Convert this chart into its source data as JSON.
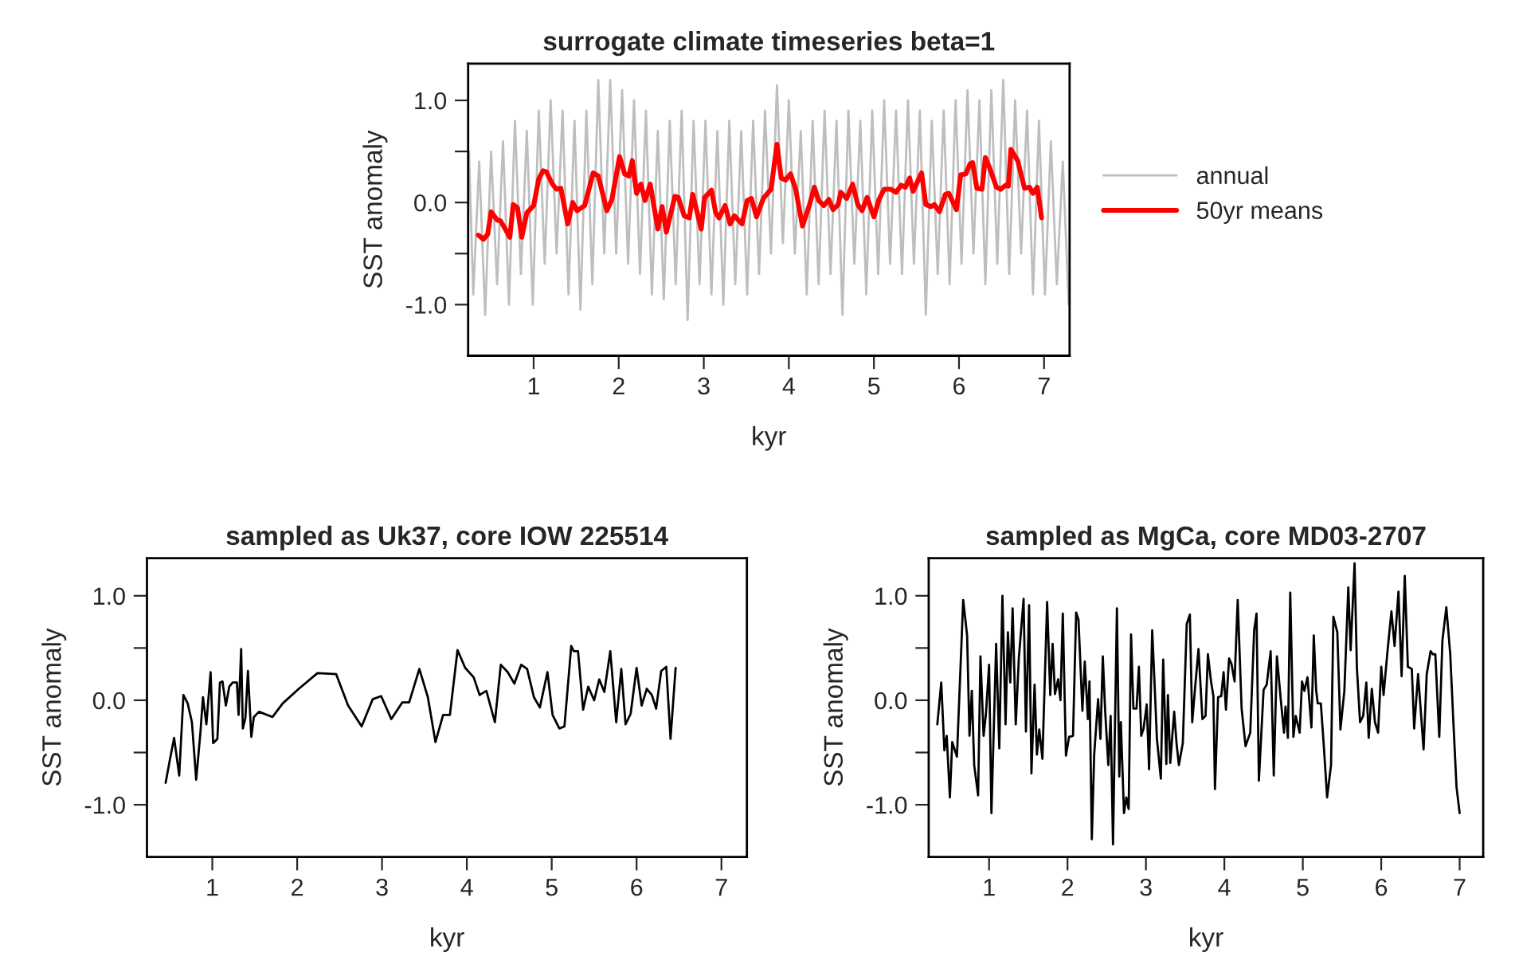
{
  "chart_data": [
    {
      "type": "line",
      "title": "surrogate climate timeseries beta=1",
      "xlabel": "kyr",
      "ylabel": "SST anomaly",
      "xlim": [
        0.23,
        7.3
      ],
      "ylim": [
        -1.5,
        1.36
      ],
      "xticks": [
        1,
        2,
        3,
        4,
        5,
        6,
        7
      ],
      "yticks": [
        {
          "value": -1,
          "label": "-1.0"
        },
        {
          "value": -0.5,
          "label": null
        },
        {
          "value": 0,
          "label": "0.0"
        },
        {
          "value": 0.5,
          "label": null
        },
        {
          "value": 1,
          "label": "1.0"
        }
      ],
      "grid": false,
      "legend": "right",
      "series": [
        {
          "name": "annual",
          "color": "#bebebe",
          "x": [
            0.24,
            0.29,
            0.36,
            0.43,
            0.5,
            0.57,
            0.64,
            0.71,
            0.78,
            0.85,
            0.92,
            0.99,
            1.06,
            1.13,
            1.2,
            1.27,
            1.34,
            1.41,
            1.48,
            1.55,
            1.62,
            1.69,
            1.76,
            1.83,
            1.9,
            1.97,
            2.04,
            2.11,
            2.18,
            2.25,
            2.32,
            2.39,
            2.46,
            2.53,
            2.6,
            2.67,
            2.74,
            2.81,
            2.88,
            2.95,
            3.02,
            3.09,
            3.16,
            3.23,
            3.3,
            3.37,
            3.44,
            3.51,
            3.58,
            3.65,
            3.72,
            3.79,
            3.86,
            3.93,
            4.0,
            4.07,
            4.14,
            4.21,
            4.28,
            4.35,
            4.42,
            4.49,
            4.56,
            4.63,
            4.7,
            4.77,
            4.84,
            4.91,
            4.98,
            5.05,
            5.12,
            5.19,
            5.26,
            5.33,
            5.4,
            5.47,
            5.54,
            5.61,
            5.68,
            5.75,
            5.82,
            5.89,
            5.96,
            6.03,
            6.1,
            6.17,
            6.24,
            6.31,
            6.38,
            6.45,
            6.52,
            6.59,
            6.66,
            6.73,
            6.8,
            6.87,
            6.94,
            7.01,
            7.08,
            7.15,
            7.22,
            7.29
          ],
          "values": [
            0.5,
            -0.9,
            0.4,
            -1.1,
            0.5,
            -0.8,
            0.6,
            -1.0,
            0.8,
            -0.7,
            0.7,
            -1.0,
            0.9,
            -0.6,
            1.0,
            -0.5,
            0.9,
            -0.9,
            0.8,
            -1.05,
            0.9,
            -0.8,
            1.2,
            -0.5,
            1.2,
            -0.5,
            1.1,
            -0.6,
            1.0,
            -0.7,
            0.9,
            -0.9,
            0.7,
            -0.95,
            0.8,
            -0.8,
            0.9,
            -1.15,
            0.8,
            -0.8,
            0.8,
            -0.9,
            0.7,
            -1.0,
            0.8,
            -0.8,
            0.7,
            -0.9,
            0.8,
            -0.7,
            0.9,
            -0.5,
            1.15,
            -0.4,
            1.0,
            -0.5,
            0.7,
            -0.9,
            0.8,
            -0.8,
            0.9,
            -0.7,
            0.8,
            -1.1,
            0.9,
            -0.6,
            0.8,
            -0.9,
            0.9,
            -0.7,
            1.0,
            -0.6,
            0.9,
            -0.7,
            1.0,
            -0.6,
            0.9,
            -1.1,
            0.8,
            -0.7,
            0.9,
            -0.8,
            1.0,
            -0.6,
            1.1,
            -0.5,
            1.0,
            -0.8,
            1.1,
            -0.6,
            1.2,
            -0.7,
            1.0,
            -0.5,
            0.9,
            -0.9,
            0.8,
            -0.9,
            0.6,
            -0.8,
            0.4,
            -1.0
          ]
        },
        {
          "name": "50yr means",
          "color": "#ff0000",
          "x": [
            0.35,
            0.41,
            0.46,
            0.5,
            0.57,
            0.61,
            0.66,
            0.72,
            0.76,
            0.81,
            0.86,
            0.92,
            1.0,
            1.06,
            1.11,
            1.15,
            1.22,
            1.27,
            1.32,
            1.4,
            1.46,
            1.51,
            1.6,
            1.7,
            1.76,
            1.86,
            1.92,
            2.01,
            2.07,
            2.12,
            2.16,
            2.21,
            2.26,
            2.31,
            2.37,
            2.46,
            2.51,
            2.56,
            2.66,
            2.7,
            2.77,
            2.83,
            2.87,
            2.97,
            3.01,
            3.09,
            3.14,
            3.18,
            3.25,
            3.31,
            3.36,
            3.45,
            3.51,
            3.56,
            3.62,
            3.7,
            3.79,
            3.86,
            3.91,
            3.96,
            4.02,
            4.08,
            4.16,
            4.24,
            4.3,
            4.35,
            4.41,
            4.47,
            4.52,
            4.58,
            4.61,
            4.68,
            4.75,
            4.81,
            4.86,
            4.92,
            5.0,
            5.06,
            5.12,
            5.2,
            5.26,
            5.32,
            5.37,
            5.42,
            5.46,
            5.56,
            5.61,
            5.67,
            5.71,
            5.77,
            5.84,
            5.88,
            5.97,
            6.02,
            6.08,
            6.13,
            6.16,
            6.21,
            6.27,
            6.31,
            6.36,
            6.44,
            6.49,
            6.55,
            6.58,
            6.61,
            6.69,
            6.77,
            6.83,
            6.87,
            6.92,
            6.97
          ],
          "values": [
            -0.32,
            -0.36,
            -0.31,
            -0.09,
            -0.17,
            -0.18,
            -0.25,
            -0.34,
            -0.02,
            -0.05,
            -0.34,
            -0.1,
            -0.03,
            0.23,
            0.31,
            0.3,
            0.18,
            0.13,
            0.14,
            -0.21,
            0.0,
            -0.08,
            -0.03,
            0.29,
            0.26,
            -0.08,
            0.03,
            0.45,
            0.28,
            0.26,
            0.41,
            0.09,
            0.18,
            0.02,
            0.18,
            -0.26,
            -0.04,
            -0.29,
            0.06,
            0.05,
            -0.13,
            -0.15,
            0.08,
            -0.26,
            0.05,
            0.12,
            -0.1,
            -0.15,
            -0.03,
            -0.21,
            -0.13,
            -0.21,
            0.02,
            0.04,
            -0.14,
            0.04,
            0.13,
            0.57,
            0.24,
            0.22,
            0.28,
            0.13,
            -0.23,
            -0.03,
            0.15,
            0.02,
            -0.03,
            0.03,
            -0.07,
            -0.02,
            0.1,
            0.04,
            0.18,
            -0.02,
            -0.08,
            0.05,
            -0.14,
            0.03,
            0.13,
            0.13,
            0.1,
            0.17,
            0.15,
            0.24,
            0.11,
            0.29,
            -0.02,
            -0.04,
            -0.02,
            -0.09,
            0.08,
            0.09,
            -0.07,
            0.27,
            0.28,
            0.38,
            0.39,
            0.14,
            0.13,
            0.44,
            0.34,
            0.15,
            0.13,
            0.17,
            0.16,
            0.52,
            0.41,
            0.14,
            0.15,
            0.09,
            0.15,
            -0.15
          ]
        }
      ]
    },
    {
      "type": "line",
      "title": "sampled as Uk37, core IOW 225514",
      "xlabel": "kyr",
      "ylabel": "SST anomaly",
      "xlim": [
        0.23,
        7.3
      ],
      "ylim": [
        -1.5,
        1.36
      ],
      "xticks": [
        1,
        2,
        3,
        4,
        5,
        6,
        7
      ],
      "yticks": [
        {
          "value": -1,
          "label": "-1.0"
        },
        {
          "value": -0.5,
          "label": null
        },
        {
          "value": 0,
          "label": "0.0"
        },
        {
          "value": 0.5,
          "label": null
        },
        {
          "value": 1,
          "label": "1.0"
        }
      ],
      "grid": false,
      "series": [
        {
          "color": "#000000",
          "x": [
            0.45,
            0.5,
            0.55,
            0.61,
            0.66,
            0.71,
            0.76,
            0.81,
            0.86,
            0.89,
            0.93,
            0.98,
            1.01,
            1.06,
            1.09,
            1.12,
            1.16,
            1.2,
            1.24,
            1.29,
            1.31,
            1.34,
            1.36,
            1.39,
            1.42,
            1.46,
            1.49,
            1.55,
            1.71,
            1.83,
            2.02,
            2.24,
            2.46,
            2.6,
            2.76,
            2.89,
            2.99,
            3.11,
            3.24,
            3.32,
            3.44,
            3.54,
            3.63,
            3.72,
            3.8,
            3.89,
            3.98,
            4.08,
            4.15,
            4.23,
            4.33,
            4.4,
            4.48,
            4.56,
            4.64,
            4.71,
            4.79,
            4.86,
            4.95,
            5.01,
            5.09,
            5.15,
            5.23,
            5.26,
            5.31,
            5.37,
            5.43,
            5.5,
            5.56,
            5.62,
            5.69,
            5.76,
            5.82,
            5.87,
            5.93,
            6.0,
            6.06,
            6.12,
            6.18,
            6.23,
            6.29,
            6.35,
            6.4,
            6.46
          ],
          "values": [
            -0.79,
            -0.57,
            -0.36,
            -0.72,
            0.05,
            -0.03,
            -0.21,
            -0.76,
            -0.31,
            0.03,
            -0.23,
            0.27,
            -0.41,
            -0.37,
            0.17,
            0.18,
            -0.05,
            0.13,
            0.17,
            0.17,
            -0.14,
            0.49,
            -0.27,
            -0.17,
            0.28,
            -0.35,
            -0.16,
            -0.11,
            -0.16,
            -0.03,
            0.11,
            0.26,
            0.25,
            -0.05,
            -0.25,
            0.01,
            0.04,
            -0.18,
            -0.02,
            -0.02,
            0.3,
            0.03,
            -0.4,
            -0.14,
            -0.14,
            0.48,
            0.31,
            0.22,
            0.05,
            0.09,
            -0.21,
            0.34,
            0.27,
            0.16,
            0.34,
            0.3,
            0.03,
            -0.07,
            0.27,
            -0.14,
            -0.27,
            -0.25,
            0.52,
            0.47,
            0.47,
            -0.09,
            0.13,
            0.0,
            0.2,
            0.08,
            0.47,
            -0.21,
            0.3,
            -0.23,
            -0.13,
            0.31,
            -0.05,
            0.11,
            0.05,
            -0.08,
            0.28,
            0.32,
            -0.37,
            0.31
          ]
        }
      ]
    },
    {
      "type": "line",
      "title": "sampled as MgCa, core MD03-2707",
      "xlabel": "kyr",
      "ylabel": "SST anomaly",
      "xlim": [
        0.23,
        7.3
      ],
      "ylim": [
        -1.5,
        1.36
      ],
      "xticks": [
        1,
        2,
        3,
        4,
        5,
        6,
        7
      ],
      "yticks": [
        {
          "value": -1,
          "label": "-1.0"
        },
        {
          "value": -0.5,
          "label": null
        },
        {
          "value": 0,
          "label": "0.0"
        },
        {
          "value": 0.5,
          "label": null
        },
        {
          "value": 1,
          "label": "1.0"
        }
      ],
      "grid": false,
      "series": [
        {
          "color": "#000000",
          "x": [
            0.34,
            0.39,
            0.43,
            0.46,
            0.5,
            0.53,
            0.59,
            0.67,
            0.72,
            0.75,
            0.78,
            0.81,
            0.86,
            0.89,
            0.93,
            0.96,
            1.0,
            1.03,
            1.09,
            1.13,
            1.17,
            1.21,
            1.24,
            1.27,
            1.3,
            1.34,
            1.38,
            1.44,
            1.47,
            1.51,
            1.54,
            1.58,
            1.61,
            1.64,
            1.68,
            1.74,
            1.78,
            1.81,
            1.84,
            1.88,
            1.91,
            1.94,
            1.98,
            2.02,
            2.07,
            2.11,
            2.14,
            2.19,
            2.22,
            2.26,
            2.28,
            2.31,
            2.34,
            2.39,
            2.42,
            2.45,
            2.48,
            2.52,
            2.55,
            2.58,
            2.63,
            2.66,
            2.68,
            2.72,
            2.75,
            2.78,
            2.81,
            2.84,
            2.88,
            2.91,
            2.94,
            2.97,
            3.01,
            3.04,
            3.08,
            3.11,
            3.14,
            3.19,
            3.22,
            3.26,
            3.28,
            3.31,
            3.36,
            3.39,
            3.42,
            3.47,
            3.52,
            3.56,
            3.59,
            3.63,
            3.67,
            3.72,
            3.76,
            3.79,
            3.83,
            3.86,
            3.88,
            3.92,
            3.96,
            3.99,
            4.02,
            4.06,
            4.09,
            4.13,
            4.17,
            4.22,
            4.27,
            4.33,
            4.38,
            4.41,
            4.44,
            4.5,
            4.54,
            4.59,
            4.63,
            4.67,
            4.72,
            4.76,
            4.78,
            4.81,
            4.84,
            4.88,
            4.91,
            4.96,
            4.99,
            5.02,
            5.06,
            5.11,
            5.14,
            5.17,
            5.19,
            5.23,
            5.27,
            5.31,
            5.36,
            5.39,
            5.44,
            5.48,
            5.53,
            5.58,
            5.61,
            5.66,
            5.69,
            5.73,
            5.77,
            5.81,
            5.84,
            5.88,
            5.92,
            5.96,
            6.0,
            6.03,
            6.08,
            6.13,
            6.17,
            6.22,
            6.26,
            6.3,
            6.34,
            6.39,
            6.42,
            6.47,
            6.51,
            6.54,
            6.58,
            6.63,
            6.66,
            6.69,
            6.74,
            6.78,
            6.83,
            6.88,
            6.92,
            6.96,
            7.0
          ],
          "values": [
            -0.23,
            0.17,
            -0.48,
            -0.34,
            -0.93,
            -0.4,
            -0.54,
            0.96,
            0.62,
            -0.34,
            0.09,
            -0.62,
            -0.91,
            0.42,
            -0.34,
            -0.13,
            0.34,
            -1.08,
            0.54,
            -0.46,
            1.0,
            -0.23,
            0.65,
            0.17,
            0.88,
            -0.23,
            0.41,
            0.97,
            -0.3,
            0.91,
            -0.7,
            0.15,
            -0.52,
            -0.28,
            -0.56,
            0.94,
            0.05,
            0.54,
            0.06,
            0.2,
            0.0,
            0.83,
            -0.53,
            -0.35,
            -0.34,
            0.84,
            0.77,
            -0.1,
            0.37,
            -0.18,
            0.18,
            -1.33,
            -0.52,
            0.01,
            -0.37,
            0.42,
            -0.1,
            -0.62,
            -0.15,
            -1.38,
            0.88,
            -0.73,
            -0.21,
            -1.08,
            -0.93,
            -1.04,
            0.63,
            -0.08,
            -0.08,
            0.32,
            -0.34,
            -0.27,
            -0.04,
            -0.66,
            0.67,
            0.16,
            -0.37,
            -0.75,
            0.39,
            -0.61,
            0.05,
            -0.6,
            -0.11,
            -0.41,
            -0.62,
            -0.41,
            0.73,
            0.82,
            -0.21,
            0.15,
            0.49,
            -0.18,
            -0.15,
            0.44,
            0.18,
            0.04,
            -0.85,
            0.03,
            0.04,
            0.27,
            -0.09,
            0.4,
            0.35,
            0.18,
            0.96,
            -0.08,
            -0.44,
            -0.31,
            0.67,
            0.83,
            -0.77,
            0.1,
            0.15,
            0.47,
            -0.72,
            0.42,
            0.0,
            -0.31,
            -0.06,
            -0.36,
            1.03,
            -0.35,
            -0.15,
            -0.31,
            0.18,
            0.09,
            0.22,
            -0.26,
            0.62,
            0.1,
            -0.03,
            -0.03,
            -0.46,
            -0.93,
            -0.62,
            0.8,
            0.65,
            -0.28,
            0.09,
            1.08,
            0.48,
            1.31,
            0.31,
            -0.21,
            -0.15,
            0.17,
            -0.36,
            0.11,
            -0.21,
            -0.31,
            0.32,
            0.05,
            0.47,
            0.85,
            0.52,
            1.04,
            0.23,
            1.19,
            0.32,
            0.3,
            -0.27,
            0.25,
            -0.16,
            -0.47,
            0.25,
            0.47,
            0.44,
            0.44,
            -0.35,
            0.57,
            0.89,
            0.44,
            -0.21,
            -0.83,
            -1.08
          ]
        }
      ]
    }
  ]
}
